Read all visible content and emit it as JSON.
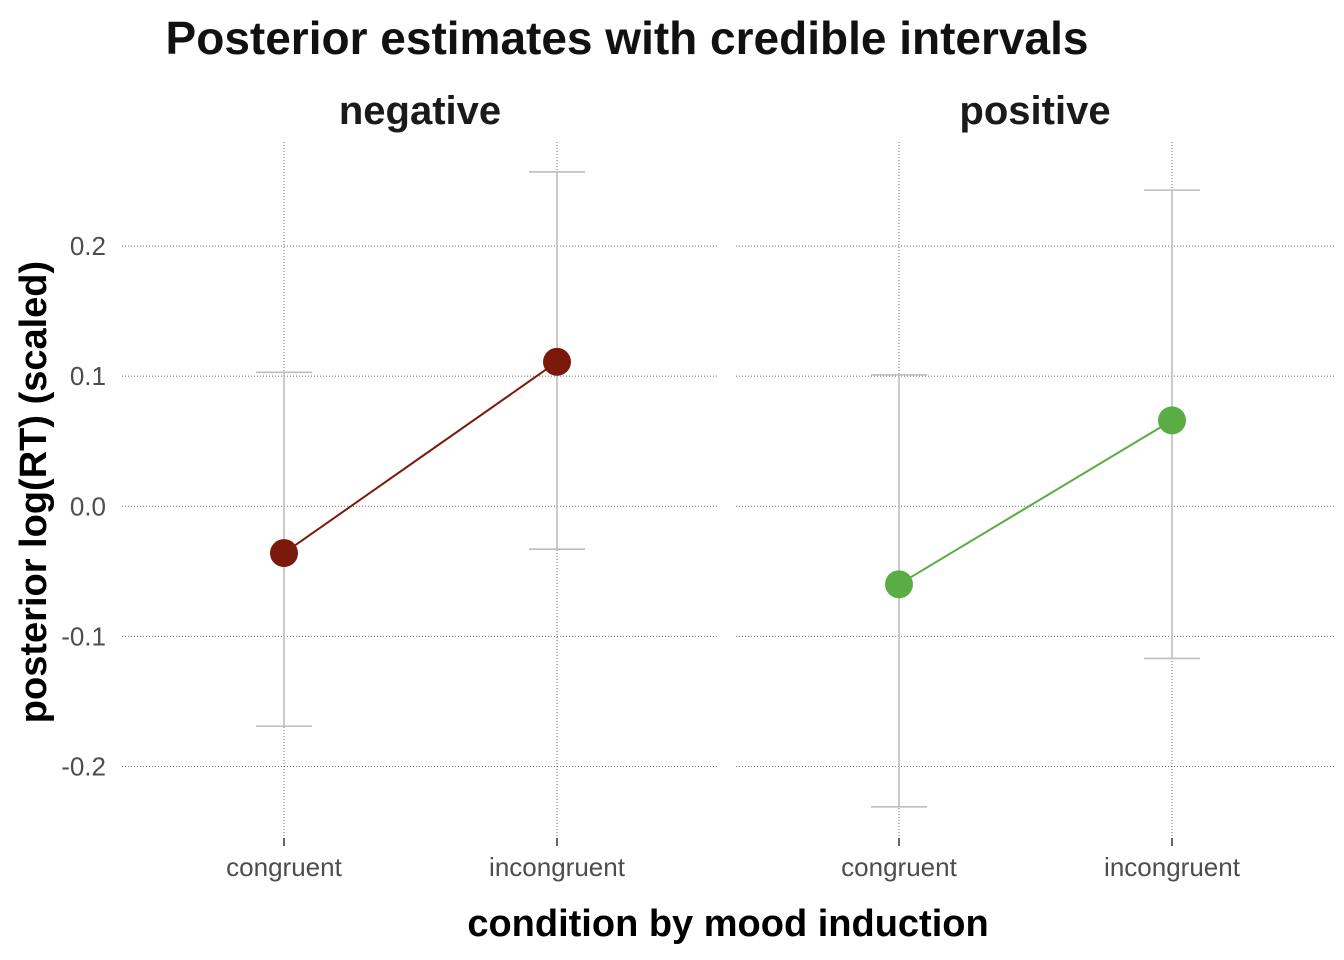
{
  "chart_data": {
    "type": "scatter",
    "title": "Posterior estimates with credible intervals",
    "xlabel": "condition by mood induction",
    "ylabel": "posterior log(RT) (scaled)",
    "ylim": [
      -0.255,
      0.28
    ],
    "yticks": [
      -0.2,
      -0.1,
      0.0,
      0.1,
      0.2
    ],
    "ytick_labels": [
      "-0.2",
      "-0.1",
      "0.0",
      "0.1",
      "0.2"
    ],
    "categories": [
      "congruent",
      "incongruent"
    ],
    "grid": true,
    "facets": [
      {
        "name": "negative",
        "color": "#7b1a0a",
        "points": [
          {
            "x": "congruent",
            "y": -0.036,
            "lower": -0.169,
            "upper": 0.103
          },
          {
            "x": "incongruent",
            "y": 0.111,
            "lower": -0.033,
            "upper": 0.257
          }
        ]
      },
      {
        "name": "positive",
        "color": "#5aac44",
        "points": [
          {
            "x": "congruent",
            "y": -0.06,
            "lower": -0.231,
            "upper": 0.101
          },
          {
            "x": "incongruent",
            "y": 0.066,
            "lower": -0.117,
            "upper": 0.243
          }
        ]
      }
    ]
  }
}
